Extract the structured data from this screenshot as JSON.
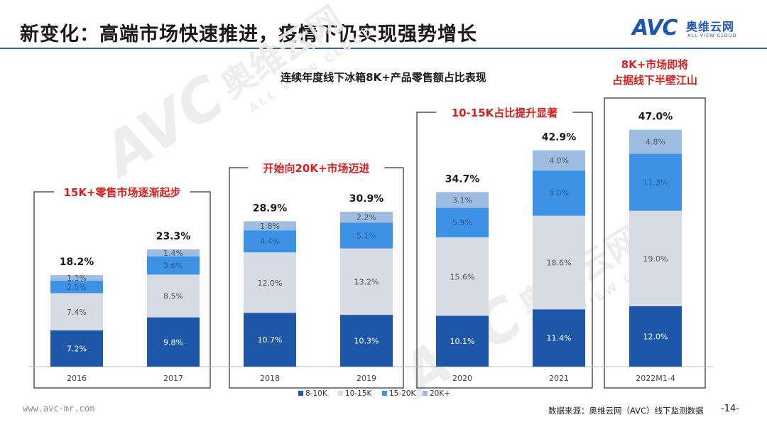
{
  "slide": {
    "title": "新变化：高端市场快速推进，疫情下仍实现强势增长",
    "logo": {
      "mark": "AVC",
      "cn": "奥维云网",
      "en": "ALL VIEW CLOUD"
    },
    "watermark": {
      "mark": "AVC",
      "cn": "奥维云网",
      "en": "ALL VIEW CLOUD"
    },
    "footer_url": "www.avc-mr.com",
    "footer_source": "数据来源：奥维云网（AVC）线下监测数据",
    "page_number": "-14-"
  },
  "chart_data": {
    "type": "bar",
    "stacked": true,
    "title": "连续年度线下冰箱8K+产品零售额占比表现",
    "categories": [
      "2016",
      "2017",
      "2018",
      "2019",
      "2020",
      "2021",
      "2022M1-4"
    ],
    "series": [
      {
        "name": "8-10K",
        "color": "#1e56a8",
        "values": [
          7.2,
          9.8,
          10.7,
          10.3,
          10.1,
          11.4,
          12.0
        ],
        "labels": [
          "7.2%",
          "9.8%",
          "10.7%",
          "10.3%",
          "10.1%",
          "11.4%",
          "12.0%"
        ]
      },
      {
        "name": "10-15K",
        "color": "#d6dbe4",
        "values": [
          7.4,
          8.5,
          12.0,
          13.2,
          15.6,
          18.6,
          19.0
        ],
        "labels": [
          "7.4%",
          "8.5%",
          "12.0%",
          "13.2%",
          "15.6%",
          "18.6%",
          "19.0%"
        ]
      },
      {
        "name": "15-20K",
        "color": "#3d92e6",
        "values": [
          2.5,
          3.6,
          4.4,
          5.1,
          5.9,
          9.0,
          11.3
        ],
        "labels": [
          "2.5%",
          "3.6%",
          "4.4%",
          "5.1%",
          "5.9%",
          "9.0%",
          "11.3%"
        ]
      },
      {
        "name": "20K+",
        "color": "#9dbde3",
        "values": [
          1.1,
          1.4,
          1.8,
          2.2,
          3.1,
          4.0,
          4.8
        ],
        "labels": [
          "1.1%",
          "1.4%",
          "1.8%",
          "2.2%",
          "3.1%",
          "4.0%",
          "4.8%"
        ]
      }
    ],
    "totals": [
      "18.2%",
      "23.3%",
      "28.9%",
      "30.9%",
      "34.7%",
      "42.9%",
      "47.0%"
    ],
    "ylim": [
      0,
      50
    ],
    "legend_position": "bottom",
    "groups": [
      {
        "label": "15K+零售市场逐渐起步",
        "from": 0,
        "to": 1
      },
      {
        "label": "开始向20K+市场迈进",
        "from": 2,
        "to": 3
      },
      {
        "label": "10-15K占比提升显著",
        "from": 4,
        "to": 5
      },
      {
        "label_lines": [
          "8K+市场即将",
          "占据线下半壁江山"
        ],
        "from": 6,
        "to": 6
      }
    ]
  }
}
